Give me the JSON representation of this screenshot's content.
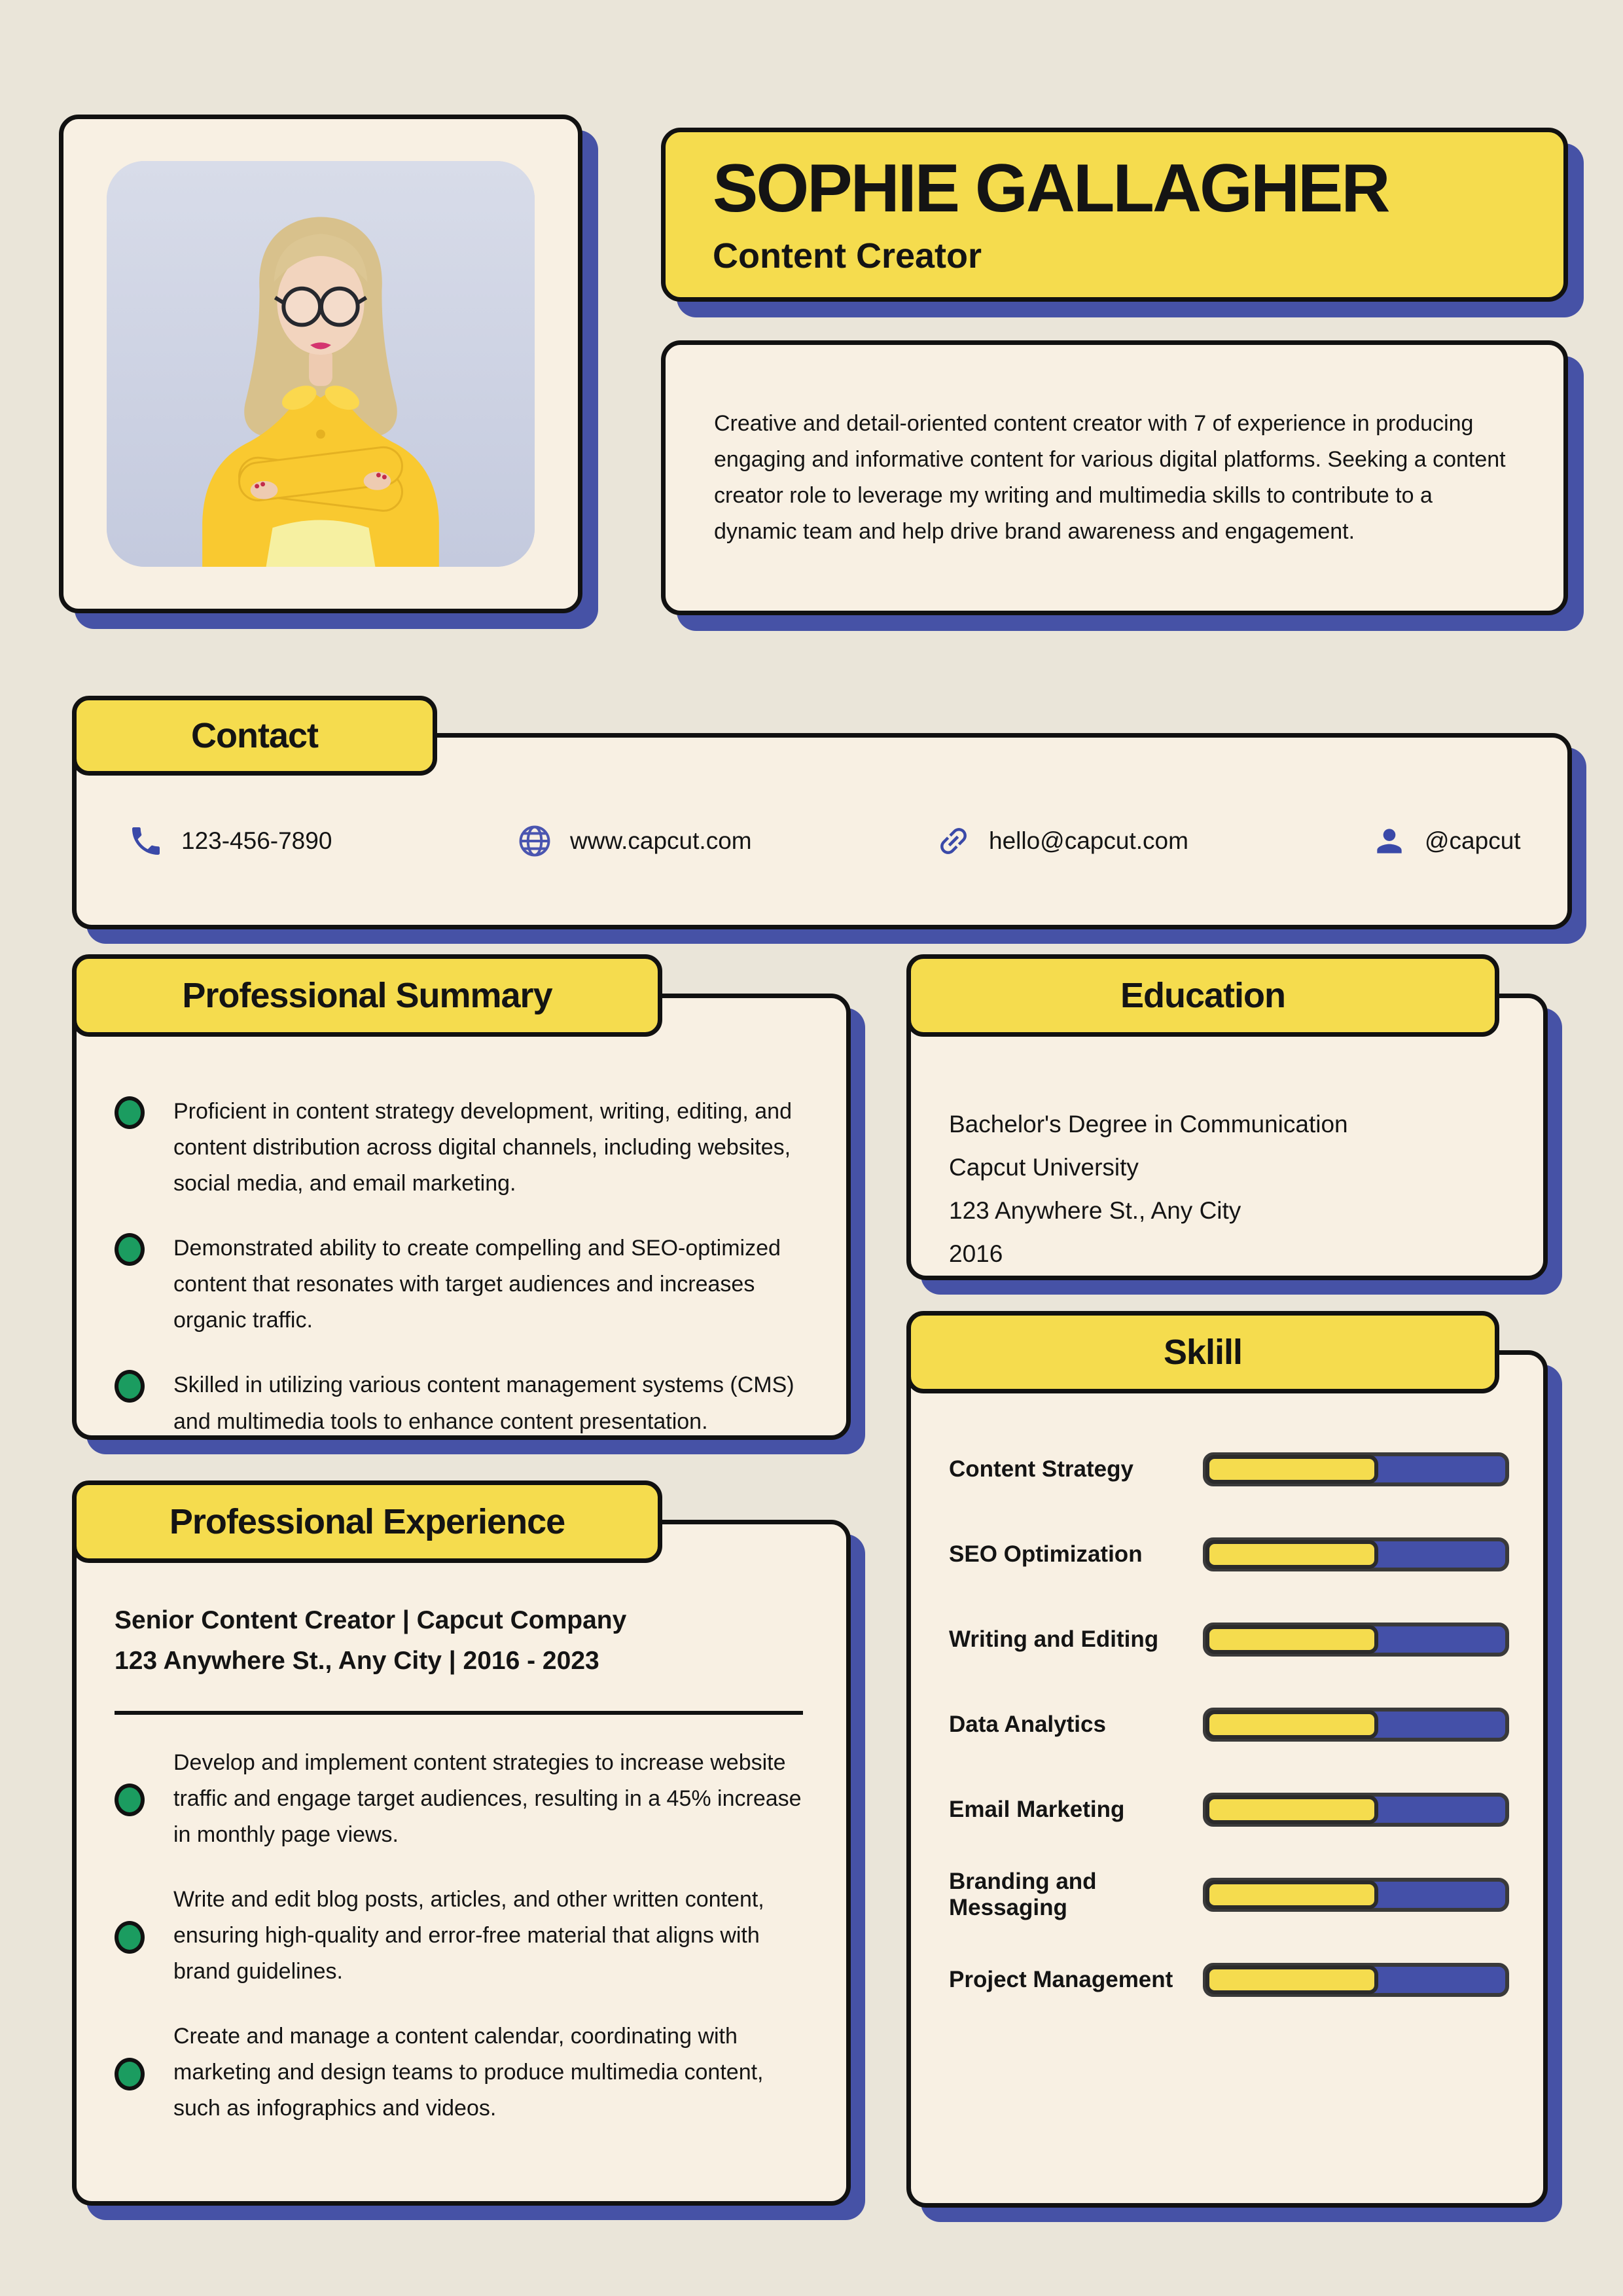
{
  "header": {
    "name": "SOPHIE GALLAGHER",
    "title": "Content Creator",
    "summary": "Creative and detail-oriented content creator with 7 of experience in producing engaging and informative content for various digital platforms. Seeking a content creator role to leverage my writing and multimedia skills to contribute to a dynamic team and help drive brand awareness and engagement."
  },
  "contact": {
    "title": "Contact",
    "items": [
      {
        "icon": "phone-icon",
        "text": "123-456-7890"
      },
      {
        "icon": "globe-icon",
        "text": "www.capcut.com"
      },
      {
        "icon": "link-icon",
        "text": "hello@capcut.com"
      },
      {
        "icon": "user-icon",
        "text": "@capcut"
      }
    ]
  },
  "professional_summary": {
    "title": "Professional Summary",
    "bullets": [
      "Proficient in content strategy development, writing, editing, and content distribution across digital channels, including websites, social media, and email marketing.",
      "Demonstrated ability to create compelling and SEO-optimized content that resonates with target audiences and increases organic traffic.",
      "Skilled in utilizing various content management systems (CMS) and multimedia tools to enhance content presentation."
    ]
  },
  "education": {
    "title": "Education",
    "lines": [
      "Bachelor's Degree in Communication",
      "Capcut University",
      "123 Anywhere St., Any City",
      "2016"
    ]
  },
  "skills": {
    "title": "Sklill",
    "items": [
      {
        "label": "Content Strategy",
        "percent": 58
      },
      {
        "label": "SEO Optimization",
        "percent": 58
      },
      {
        "label": "Writing and Editing",
        "percent": 58
      },
      {
        "label": "Data Analytics",
        "percent": 58
      },
      {
        "label": "Email Marketing",
        "percent": 58
      },
      {
        "label": "Branding and Messaging",
        "percent": 58
      },
      {
        "label": "Project Management",
        "percent": 58
      }
    ]
  },
  "experience": {
    "title": "Professional Experience",
    "role": "Senior Content Creator | Capcut Company",
    "meta": "123 Anywhere St., Any City | 2016 - 2023",
    "bullets": [
      "Develop and implement content strategies to increase website traffic and engage target audiences, resulting in a 45% increase in monthly page views.",
      "Write and edit blog posts, articles, and other written content, ensuring high-quality and error-free material that aligns with brand guidelines.",
      "Create and manage a content calendar, coordinating with marketing and design teams to produce multimedia content, such as infographics and videos."
    ]
  },
  "colors": {
    "accent_yellow": "#F5DC4E",
    "shadow_blue": "#4652A6",
    "bar_blue": "#4450A8",
    "card_cream": "#F8F0E3",
    "page_beige": "#EAE5D9",
    "bullet_green": "#1B9C60",
    "icon_blue": "#3A49A8"
  }
}
